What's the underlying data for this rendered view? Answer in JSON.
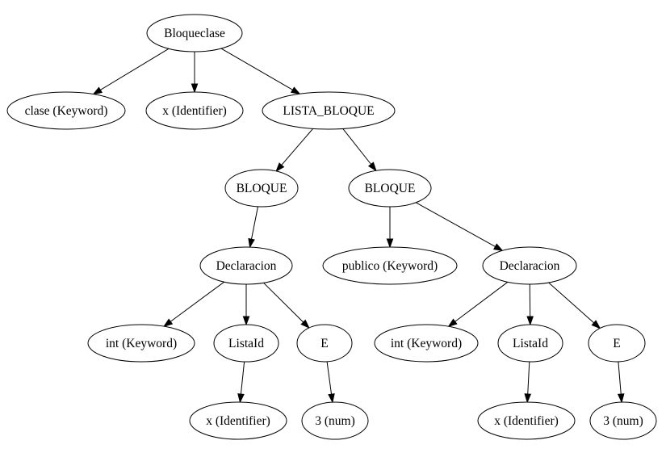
{
  "tree": {
    "nodes": [
      {
        "id": "n0",
        "label": "Bloqueclase"
      },
      {
        "id": "n1",
        "label": "clase (Keyword)"
      },
      {
        "id": "n2",
        "label": "x (Identifier)"
      },
      {
        "id": "n3",
        "label": "LISTA_BLOQUE"
      },
      {
        "id": "n4",
        "label": "BLOQUE"
      },
      {
        "id": "n5",
        "label": "BLOQUE"
      },
      {
        "id": "n6",
        "label": "Declaracion"
      },
      {
        "id": "n7",
        "label": "publico (Keyword)"
      },
      {
        "id": "n8",
        "label": "Declaracion"
      },
      {
        "id": "n9",
        "label": "int (Keyword)"
      },
      {
        "id": "n10",
        "label": "ListaId"
      },
      {
        "id": "n11",
        "label": "E"
      },
      {
        "id": "n12",
        "label": "int (Keyword)"
      },
      {
        "id": "n13",
        "label": "ListaId"
      },
      {
        "id": "n14",
        "label": "E"
      },
      {
        "id": "n15",
        "label": "x (Identifier)"
      },
      {
        "id": "n16",
        "label": "3 (num)"
      },
      {
        "id": "n17",
        "label": "x (Identifier)"
      },
      {
        "id": "n18",
        "label": "3 (num)"
      }
    ],
    "edges": [
      [
        "n0",
        "n1"
      ],
      [
        "n0",
        "n2"
      ],
      [
        "n0",
        "n3"
      ],
      [
        "n3",
        "n4"
      ],
      [
        "n3",
        "n5"
      ],
      [
        "n4",
        "n6"
      ],
      [
        "n5",
        "n7"
      ],
      [
        "n5",
        "n8"
      ],
      [
        "n6",
        "n9"
      ],
      [
        "n6",
        "n10"
      ],
      [
        "n6",
        "n11"
      ],
      [
        "n8",
        "n12"
      ],
      [
        "n8",
        "n13"
      ],
      [
        "n8",
        "n14"
      ],
      [
        "n10",
        "n15"
      ],
      [
        "n11",
        "n16"
      ],
      [
        "n13",
        "n17"
      ],
      [
        "n14",
        "n18"
      ]
    ]
  }
}
